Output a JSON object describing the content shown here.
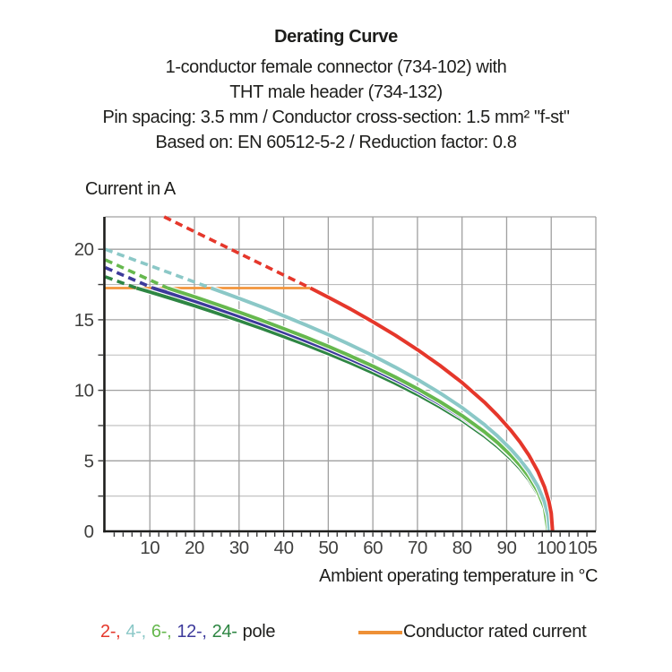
{
  "header": {
    "title": "Derating Curve",
    "subtitle_lines": [
      "1-conductor female connector (734-102) with",
      "THT male header (734-132)",
      "Pin spacing: 3.5 mm / Conductor cross-section: 1.5 mm² \"f-st\"",
      "Based on: EN 60512-5-2 / Reduction factor: 0.8"
    ]
  },
  "chart_data": {
    "type": "line",
    "title": "Derating Curve",
    "xlabel": "Ambient operating temperature in °C",
    "ylabel": "Current in A",
    "xlim": [
      0,
      110
    ],
    "ylim": [
      0,
      22.3
    ],
    "grid": true,
    "x_gridline_step": 10,
    "x_gridline_max": 100,
    "y_gridline_step": 2.5,
    "y_major_step": 5,
    "x_minor_tick_step": 2,
    "y_tick_step": 2.5,
    "x_tick_labels": [
      {
        "label": "10",
        "x": 10
      },
      {
        "label": "20",
        "x": 20
      },
      {
        "label": "30",
        "x": 30
      },
      {
        "label": "40",
        "x": 40
      },
      {
        "label": "50",
        "x": 50
      },
      {
        "label": "60",
        "x": 60
      },
      {
        "label": "70",
        "x": 70
      },
      {
        "label": "80",
        "x": 80
      },
      {
        "label": "90",
        "x": 90
      },
      {
        "label": "100",
        "x": 100
      },
      {
        "label": "105",
        "x": 107
      }
    ],
    "y_tick_labels": [
      {
        "label": "0",
        "y": 0
      },
      {
        "label": "5",
        "y": 5
      },
      {
        "label": "10",
        "y": 10
      },
      {
        "label": "15",
        "y": 15
      },
      {
        "label": "20",
        "y": 20
      }
    ],
    "rated_current_line": {
      "name": "Conductor rated current",
      "color": "#f2953c",
      "value_A": 17.25,
      "points": [
        [
          0,
          17.25
        ],
        [
          46,
          17.25
        ]
      ]
    },
    "series": [
      {
        "name": "2-pole",
        "color": "#e5372b",
        "dashed_points": [
          [
            13.2,
            22.3
          ],
          [
            46,
            17.25
          ]
        ],
        "solid_points": [
          [
            46,
            17.25
          ],
          [
            50,
            16.6
          ],
          [
            55,
            15.76
          ],
          [
            60,
            14.86
          ],
          [
            65,
            13.91
          ],
          [
            70,
            12.88
          ],
          [
            75,
            11.77
          ],
          [
            80,
            10.55
          ],
          [
            85,
            9.16
          ],
          [
            88,
            8.21
          ],
          [
            91,
            7.14
          ],
          [
            93,
            6.33
          ],
          [
            95,
            5.39
          ],
          [
            97,
            4.25
          ],
          [
            98.5,
            3.14
          ],
          [
            99.5,
            2.09
          ],
          [
            100,
            1.28
          ],
          [
            100.3,
            0
          ]
        ]
      },
      {
        "name": "4-pole",
        "color": "#8bc8c7",
        "dashed_points": [
          [
            0,
            20.0
          ],
          [
            23.7,
            17.25
          ]
        ],
        "solid_points": [
          [
            23.7,
            17.25
          ],
          [
            30,
            16.52
          ],
          [
            35,
            15.92
          ],
          [
            40,
            15.28
          ],
          [
            45,
            14.63
          ],
          [
            50,
            13.95
          ],
          [
            55,
            13.22
          ],
          [
            60,
            12.46
          ],
          [
            65,
            11.64
          ],
          [
            70,
            10.77
          ],
          [
            75,
            9.82
          ],
          [
            80,
            8.77
          ],
          [
            85,
            7.57
          ],
          [
            88,
            6.74
          ],
          [
            91,
            5.8
          ],
          [
            93,
            5.08
          ],
          [
            95,
            4.25
          ],
          [
            97,
            3.19
          ],
          [
            98.5,
            2.08
          ],
          [
            99.3,
            1.08
          ],
          [
            99.6,
            0
          ]
        ]
      },
      {
        "name": "6-pole",
        "color": "#66b84e",
        "dashed_points": [
          [
            0,
            19.25
          ],
          [
            14,
            17.25
          ]
        ],
        "solid_points": [
          [
            14,
            17.25
          ],
          [
            20,
            16.63
          ],
          [
            25,
            16.09
          ],
          [
            30,
            15.54
          ],
          [
            35,
            14.97
          ],
          [
            40,
            14.37
          ],
          [
            45,
            13.76
          ],
          [
            50,
            13.11
          ],
          [
            55,
            12.43
          ],
          [
            60,
            11.71
          ],
          [
            65,
            10.94
          ],
          [
            70,
            10.11
          ],
          [
            75,
            9.2
          ],
          [
            80,
            8.2
          ],
          [
            85,
            7.06
          ],
          [
            88,
            6.28
          ],
          [
            91,
            5.38
          ],
          [
            93,
            4.69
          ],
          [
            95,
            3.87
          ],
          [
            97,
            2.83
          ],
          [
            98.5,
            1.67
          ],
          [
            99.3,
            0
          ]
        ]
      },
      {
        "name": "12-pole",
        "color": "#3d3a9b",
        "dashed_points": [
          [
            0,
            18.7
          ],
          [
            10.7,
            17.25
          ]
        ],
        "solid_points": [
          [
            10.7,
            17.25
          ],
          [
            15,
            16.83
          ],
          [
            20,
            16.33
          ],
          [
            25,
            15.8
          ],
          [
            30,
            15.26
          ],
          [
            35,
            14.7
          ],
          [
            40,
            14.12
          ],
          [
            45,
            13.51
          ],
          [
            50,
            12.88
          ],
          [
            55,
            12.21
          ],
          [
            60,
            11.51
          ],
          [
            65,
            10.76
          ],
          [
            70,
            9.95
          ],
          [
            75,
            9.06
          ],
          [
            80,
            8.09
          ],
          [
            85,
            6.97
          ],
          [
            88,
            6.21
          ],
          [
            91,
            5.34
          ],
          [
            93,
            4.67
          ],
          [
            95,
            3.88
          ],
          [
            97,
            2.9
          ],
          [
            98.5,
            1.83
          ],
          [
            99.5,
            0
          ]
        ]
      },
      {
        "name": "24-pole",
        "color": "#2e8643",
        "dashed_points": [
          [
            0,
            18.05
          ],
          [
            7,
            17.25
          ]
        ],
        "solid_points": [
          [
            7,
            17.25
          ],
          [
            10,
            16.97
          ],
          [
            15,
            16.49
          ],
          [
            20,
            16.0
          ],
          [
            25,
            15.48
          ],
          [
            30,
            14.95
          ],
          [
            35,
            14.4
          ],
          [
            40,
            13.82
          ],
          [
            45,
            13.23
          ],
          [
            50,
            12.6
          ],
          [
            55,
            11.95
          ],
          [
            60,
            11.25
          ],
          [
            65,
            10.51
          ],
          [
            70,
            9.71
          ],
          [
            75,
            8.84
          ],
          [
            80,
            7.88
          ],
          [
            85,
            6.77
          ],
          [
            88,
            6.01
          ],
          [
            91,
            5.14
          ],
          [
            93,
            4.47
          ],
          [
            95,
            3.68
          ],
          [
            97,
            2.66
          ],
          [
            98.5,
            1.5
          ],
          [
            99.2,
            0
          ]
        ]
      }
    ],
    "colors": {
      "grid_major": "#a0a0a0",
      "grid_minor": "#bcbcbc",
      "axis": "#1d1d1b",
      "tick_label": "#3f3f3e"
    }
  },
  "legend": {
    "poles": [
      {
        "label": "2-,",
        "color": "#e5372b"
      },
      {
        "label": "4-,",
        "color": "#8bc8c7"
      },
      {
        "label": "6-,",
        "color": "#66b84e"
      },
      {
        "label": "12-,",
        "color": "#3d3a9b"
      },
      {
        "label": "24-",
        "color": "#2e8643"
      }
    ],
    "poles_suffix": "pole",
    "rated": {
      "label": "Conductor rated current",
      "color": "#ee9036"
    }
  }
}
